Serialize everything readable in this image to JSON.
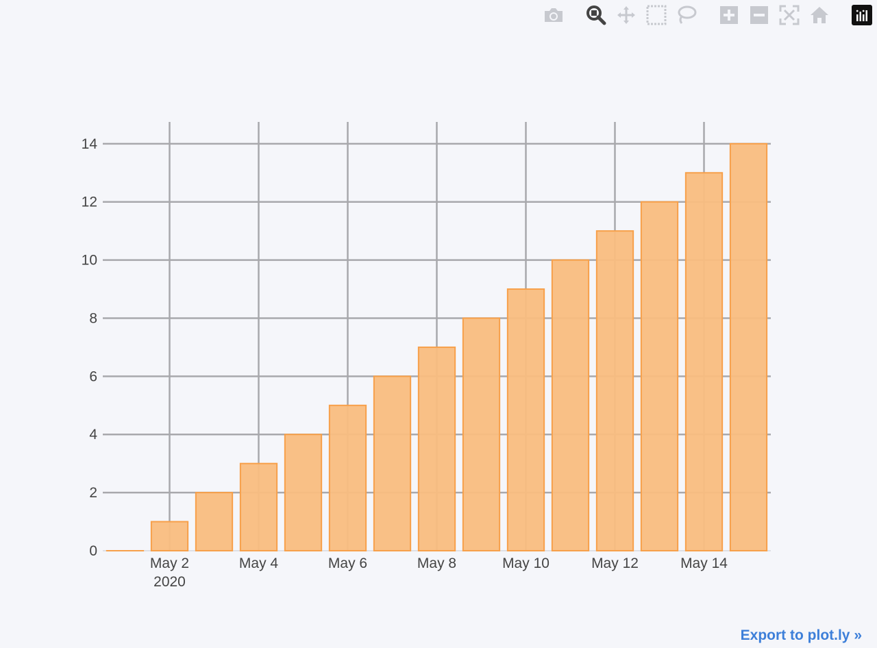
{
  "modebar": {
    "buttons": [
      {
        "icon": "camera-icon",
        "label": "Download plot as a png"
      },
      {
        "icon": "zoom-icon",
        "label": "Zoom"
      },
      {
        "icon": "pan-icon",
        "label": "Pan"
      },
      {
        "icon": "box-select-icon",
        "label": "Box Select"
      },
      {
        "icon": "lasso-select-icon",
        "label": "Lasso Select"
      },
      {
        "icon": "zoom-in-icon",
        "label": "Zoom in"
      },
      {
        "icon": "zoom-out-icon",
        "label": "Zoom out"
      },
      {
        "icon": "autoscale-icon",
        "label": "Autoscale"
      },
      {
        "icon": "reset-axes-icon",
        "label": "Reset axes"
      },
      {
        "icon": "plotly-logo-icon",
        "label": "Produced with Plotly"
      }
    ],
    "active": "zoom-icon"
  },
  "export_link": "Export to plot.ly »",
  "colors": {
    "background": "#f5f6fa",
    "bar_fill": "#f9bd80",
    "bar_line": "#f7a04a",
    "grid": "#a8a8ac",
    "link": "#3d7fd9"
  },
  "chart_data": {
    "type": "bar",
    "x": [
      "2020-05-01",
      "2020-05-02",
      "2020-05-03",
      "2020-05-04",
      "2020-05-05",
      "2020-05-06",
      "2020-05-07",
      "2020-05-08",
      "2020-05-09",
      "2020-05-10",
      "2020-05-11",
      "2020-05-12",
      "2020-05-13",
      "2020-05-14",
      "2020-05-15"
    ],
    "values": [
      0,
      1,
      2,
      3,
      4,
      5,
      6,
      7,
      8,
      9,
      10,
      11,
      12,
      13,
      14
    ],
    "x_ticks": [
      {
        "date": "2020-05-02",
        "label": "May 2",
        "sublabel": "2020"
      },
      {
        "date": "2020-05-04",
        "label": "May 4",
        "sublabel": ""
      },
      {
        "date": "2020-05-06",
        "label": "May 6",
        "sublabel": ""
      },
      {
        "date": "2020-05-08",
        "label": "May 8",
        "sublabel": ""
      },
      {
        "date": "2020-05-10",
        "label": "May 10",
        "sublabel": ""
      },
      {
        "date": "2020-05-12",
        "label": "May 12",
        "sublabel": ""
      },
      {
        "date": "2020-05-14",
        "label": "May 14",
        "sublabel": ""
      }
    ],
    "y_ticks": [
      0,
      2,
      4,
      6,
      8,
      10,
      12,
      14
    ],
    "xlim": [
      "2020-04-30T12:00",
      "2020-05-15T12:00"
    ],
    "ylim": [
      0,
      14.75
    ],
    "grid": true,
    "title": "",
    "xlabel": "",
    "ylabel": ""
  }
}
